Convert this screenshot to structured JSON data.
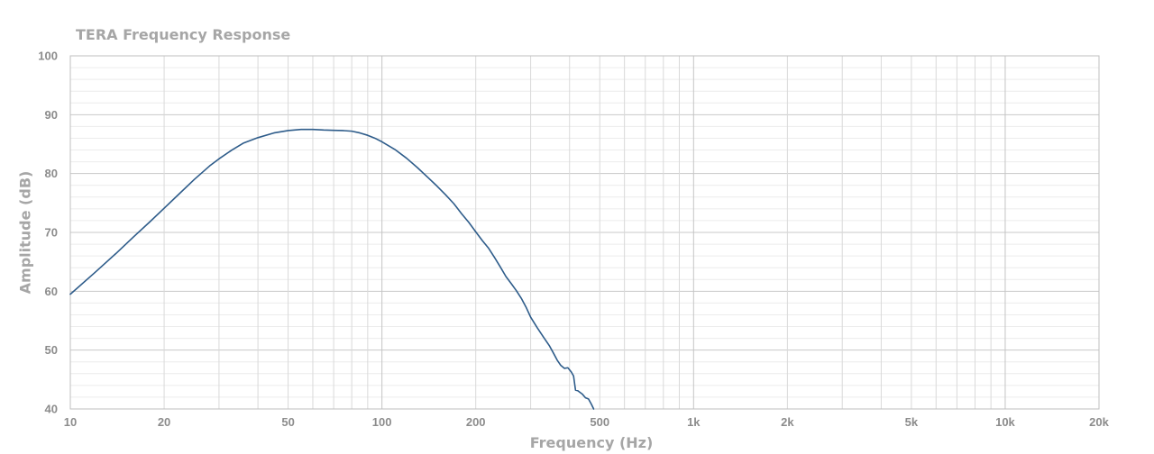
{
  "chart_data": {
    "type": "line",
    "title": "TERA Frequency Response",
    "xlabel": "Frequency (Hz)",
    "ylabel": "Amplitude (dB)",
    "x_scale": "log",
    "xlim": [
      10,
      20000
    ],
    "ylim": [
      40,
      100
    ],
    "x_ticks": [
      {
        "value": 10,
        "label": "10"
      },
      {
        "value": 20,
        "label": "20"
      },
      {
        "value": 50,
        "label": "50"
      },
      {
        "value": 100,
        "label": "100"
      },
      {
        "value": 200,
        "label": "200"
      },
      {
        "value": 500,
        "label": "500"
      },
      {
        "value": 1000,
        "label": "1k"
      },
      {
        "value": 2000,
        "label": "2k"
      },
      {
        "value": 5000,
        "label": "5k"
      },
      {
        "value": 10000,
        "label": "10k"
      },
      {
        "value": 20000,
        "label": "20k"
      }
    ],
    "y_ticks": [
      40,
      50,
      60,
      70,
      80,
      90,
      100
    ],
    "grid": {
      "major": true,
      "minor": true
    },
    "series": [
      {
        "color": "#2e5c8a",
        "points": [
          [
            10,
            59.5
          ],
          [
            12,
            63.2
          ],
          [
            14,
            66.4
          ],
          [
            16,
            69.3
          ],
          [
            18,
            71.8
          ],
          [
            20,
            74.1
          ],
          [
            22,
            76.2
          ],
          [
            25,
            79.0
          ],
          [
            28,
            81.3
          ],
          [
            30,
            82.5
          ],
          [
            33,
            84.0
          ],
          [
            36,
            85.2
          ],
          [
            40,
            86.1
          ],
          [
            45,
            86.9
          ],
          [
            50,
            87.3
          ],
          [
            55,
            87.5
          ],
          [
            60,
            87.5
          ],
          [
            65,
            87.4
          ],
          [
            70,
            87.35
          ],
          [
            75,
            87.3
          ],
          [
            80,
            87.2
          ],
          [
            85,
            86.9
          ],
          [
            90,
            86.5
          ],
          [
            95,
            86.0
          ],
          [
            100,
            85.4
          ],
          [
            110,
            84.1
          ],
          [
            120,
            82.6
          ],
          [
            130,
            81.0
          ],
          [
            140,
            79.4
          ],
          [
            150,
            77.9
          ],
          [
            160,
            76.4
          ],
          [
            170,
            74.9
          ],
          [
            180,
            73.2
          ],
          [
            190,
            71.7
          ],
          [
            200,
            70.1
          ],
          [
            210,
            68.6
          ],
          [
            220,
            67.3
          ],
          [
            230,
            65.7
          ],
          [
            240,
            64.1
          ],
          [
            250,
            62.5
          ],
          [
            260,
            61.3
          ],
          [
            270,
            60.1
          ],
          [
            280,
            58.8
          ],
          [
            290,
            57.3
          ],
          [
            300,
            55.6
          ],
          [
            315,
            53.8
          ],
          [
            330,
            52.2
          ],
          [
            345,
            50.7
          ],
          [
            355,
            49.5
          ],
          [
            365,
            48.3
          ],
          [
            375,
            47.4
          ],
          [
            385,
            46.9
          ],
          [
            395,
            47.0
          ],
          [
            405,
            46.3
          ],
          [
            412,
            45.6
          ],
          [
            418,
            43.2
          ],
          [
            425,
            43.1
          ],
          [
            440,
            42.5
          ],
          [
            450,
            41.9
          ],
          [
            460,
            41.7
          ],
          [
            470,
            40.8
          ],
          [
            478,
            40.0
          ]
        ]
      }
    ]
  }
}
